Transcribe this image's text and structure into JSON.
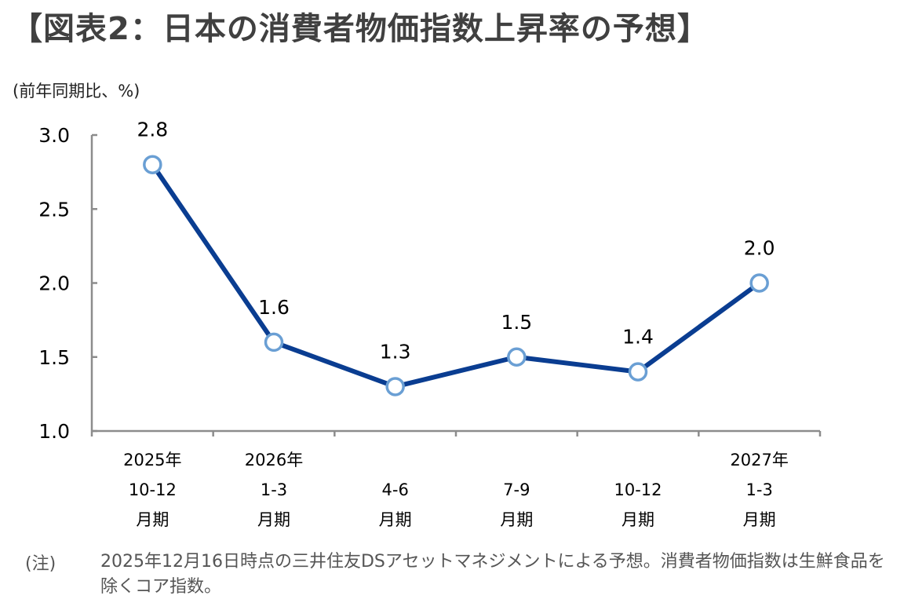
{
  "title": "【図表2：日本の消費者物価指数上昇率の予想】",
  "unit_label": "(前年同期比、%)",
  "note_label": "(注)",
  "note_text": "2025年12月16日時点の三井住友DSアセットマネジメントによる予想。消費者物価指数は生鮮食品を除くコア指数。",
  "chart_data": {
    "type": "line",
    "categories": [
      [
        "2025年",
        "10-12",
        "月期"
      ],
      [
        "2026年",
        "1-3",
        "月期"
      ],
      [
        "",
        "4-6",
        "月期"
      ],
      [
        "",
        "7-9",
        "月期"
      ],
      [
        "",
        "10-12",
        "月期"
      ],
      [
        "2027年",
        "1-3",
        "月期"
      ]
    ],
    "values": [
      2.8,
      1.6,
      1.3,
      1.5,
      1.4,
      2.0
    ],
    "data_labels": [
      "2.8",
      "1.6",
      "1.3",
      "1.5",
      "1.4",
      "2.0"
    ],
    "ylim": [
      1.0,
      3.0
    ],
    "yticks": [
      "1.0",
      "1.5",
      "2.0",
      "2.5",
      "3.0"
    ],
    "grid": false,
    "line_color": "#0a3d91",
    "marker_edge_color": "#6a9fd4",
    "marker_fill": "#ffffff"
  }
}
